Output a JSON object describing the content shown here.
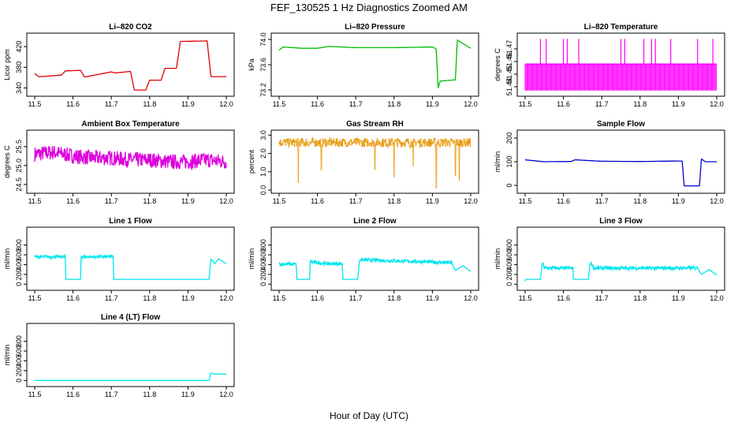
{
  "figure": {
    "title": "FEF_130525  1 Hz Diagnostics Zoomed AM",
    "xlabel": "Hour of Day (UTC)"
  },
  "chart_data": [
    {
      "type": "line",
      "title": "Li–820 CO2",
      "ylabel": "Licor ppm",
      "xlim": [
        11.5,
        12.0
      ],
      "ylim": [
        330,
        440
      ],
      "yticks": [
        "340",
        "380",
        "420"
      ],
      "xticks": [
        "11.5",
        "11.6",
        "11.7",
        "11.8",
        "11.9",
        "12.0"
      ],
      "color": "#dd0000",
      "x": [
        11.5,
        11.51,
        11.52,
        11.57,
        11.58,
        11.62,
        11.63,
        11.7,
        11.71,
        11.75,
        11.76,
        11.79,
        11.8,
        11.83,
        11.84,
        11.87,
        11.88,
        11.95,
        11.96,
        12.0
      ],
      "y": [
        368,
        362,
        362,
        365,
        373,
        374,
        361,
        371,
        369,
        372,
        336,
        336,
        355,
        355,
        378,
        378,
        430,
        431,
        362,
        362
      ]
    },
    {
      "type": "line",
      "title": "Li–820 Pressure",
      "ylabel": "kPa",
      "xlim": [
        11.5,
        12.0
      ],
      "ylim": [
        73.15,
        74.05
      ],
      "yticks": [
        "73.2",
        "73.6",
        "74.0"
      ],
      "xticks": [
        "11.5",
        "11.6",
        "11.7",
        "11.8",
        "11.9",
        "12.0"
      ],
      "color": "#00bb00",
      "x": [
        11.5,
        11.51,
        11.56,
        11.6,
        11.63,
        11.7,
        11.8,
        11.9,
        11.91,
        11.915,
        11.92,
        11.96,
        11.965,
        12.0
      ],
      "y": [
        73.83,
        73.88,
        73.86,
        73.86,
        73.89,
        73.87,
        73.87,
        73.88,
        73.85,
        73.22,
        73.34,
        73.36,
        73.99,
        73.86
      ]
    },
    {
      "type": "line",
      "title": "Li–820 Temperature",
      "ylabel": "degrees C",
      "xlim": [
        11.5,
        12.0
      ],
      "ylim": [
        51.435,
        51.48
      ],
      "yticks": [
        "51.44",
        "51.45",
        "51.46",
        "51.47"
      ],
      "xticks": [
        "11.5",
        "11.6",
        "11.7",
        "11.8",
        "11.9",
        "12.0"
      ],
      "color": "#ff00ff",
      "levels": [
        51.437,
        51.458
      ],
      "spike_value": 51.478,
      "spikes_x": [
        11.54,
        11.555,
        11.6,
        11.61,
        11.64,
        11.75,
        11.76,
        11.81,
        11.83,
        11.84,
        11.88,
        11.95,
        11.99
      ]
    },
    {
      "type": "line",
      "title": "Ambient Box Temperature",
      "ylabel": "degrees C",
      "xlim": [
        11.5,
        12.0
      ],
      "ylim": [
        24.35,
        25.85
      ],
      "yticks": [
        "24.5",
        "25.0",
        "25.5"
      ],
      "xticks": [
        "11.5",
        "11.6",
        "11.7",
        "11.8",
        "11.9",
        "12.0"
      ],
      "color": "#dd00dd",
      "x": [
        11.5,
        11.55,
        11.6,
        11.65,
        11.7,
        11.75,
        11.8,
        11.85,
        11.9,
        11.95,
        12.0
      ],
      "y": [
        25.3,
        25.35,
        25.25,
        25.2,
        25.2,
        25.15,
        25.15,
        25.1,
        25.1,
        25.15,
        25.1
      ],
      "noise": 0.4
    },
    {
      "type": "line",
      "title": "Gas Stream RH",
      "ylabel": "percent",
      "xlim": [
        11.5,
        12.0
      ],
      "ylim": [
        0,
        3.1
      ],
      "yticks": [
        "0.0",
        "1.0",
        "2.0",
        "3.0"
      ],
      "xticks": [
        "11.5",
        "11.6",
        "11.7",
        "11.8",
        "11.9",
        "12.0"
      ],
      "color": "#e69500",
      "x": [
        11.5,
        12.0
      ],
      "y": [
        2.6,
        2.6
      ],
      "noise": 0.5,
      "dips_x": [
        11.55,
        11.61,
        11.75,
        11.8,
        11.85,
        11.91,
        11.96,
        11.97
      ],
      "dips_y": [
        0.4,
        1.1,
        1.1,
        0.7,
        1.3,
        0.1,
        0.8,
        0.5
      ]
    },
    {
      "type": "line",
      "title": "Sample Flow",
      "ylabel": "ml/min",
      "xlim": [
        11.5,
        12.0
      ],
      "ylim": [
        -20,
        220
      ],
      "yticks": [
        "0",
        "100",
        "200"
      ],
      "xticks": [
        "11.5",
        "11.6",
        "11.7",
        "11.8",
        "11.9",
        "12.0"
      ],
      "color": "#0000cc",
      "x": [
        11.5,
        11.55,
        11.62,
        11.63,
        11.7,
        11.8,
        11.9,
        11.91,
        11.915,
        11.955,
        11.96,
        11.97,
        12.0
      ],
      "y": [
        108,
        100,
        101,
        108,
        102,
        101,
        103,
        103,
        -2,
        -2,
        112,
        100,
        100
      ]
    },
    {
      "type": "line",
      "title": "Line 1 Flow",
      "ylabel": "ml/min",
      "xlim": [
        11.5,
        12.0
      ],
      "ylim": [
        -60,
        1100
      ],
      "yticks": [
        "0",
        "200",
        "400",
        "600",
        "800"
      ],
      "xticks": [
        "11.5",
        "11.6",
        "11.7",
        "11.8",
        "11.9",
        "12.0"
      ],
      "color": "#00e5ee",
      "x": [
        11.5,
        11.58,
        11.581,
        11.62,
        11.621,
        11.705,
        11.706,
        11.955,
        11.96,
        11.97,
        11.98,
        12.0
      ],
      "y": [
        560,
        560,
        100,
        100,
        560,
        560,
        100,
        100,
        520,
        420,
        520,
        420
      ],
      "noise": 60,
      "noise_ranges": [
        [
          11.5,
          11.58
        ],
        [
          11.62,
          11.705
        ]
      ]
    },
    {
      "type": "line",
      "title": "Line 2 Flow",
      "ylabel": "ml/min",
      "xlim": [
        11.5,
        12.0
      ],
      "ylim": [
        -60,
        1100
      ],
      "yticks": [
        "0",
        "200",
        "400",
        "600",
        "800"
      ],
      "xticks": [
        "11.5",
        "11.6",
        "11.7",
        "11.8",
        "11.9",
        "12.0"
      ],
      "color": "#00e5ee",
      "x": [
        11.5,
        11.545,
        11.546,
        11.58,
        11.581,
        11.62,
        11.621,
        11.665,
        11.666,
        11.705,
        11.71,
        11.95,
        11.96,
        11.98,
        12.0
      ],
      "y": [
        410,
        410,
        100,
        100,
        460,
        420,
        420,
        420,
        100,
        100,
        500,
        440,
        280,
        380,
        260
      ],
      "noise": 70,
      "noise_ranges": [
        [
          11.5,
          11.545
        ],
        [
          11.58,
          11.665
        ],
        [
          11.71,
          11.95
        ]
      ]
    },
    {
      "type": "line",
      "title": "Line 3 Flow",
      "ylabel": "ml/min",
      "xlim": [
        11.5,
        12.0
      ],
      "ylim": [
        -60,
        1100
      ],
      "yticks": [
        "0",
        "200",
        "400",
        "600",
        "800"
      ],
      "xticks": [
        "11.5",
        "11.6",
        "11.7",
        "11.8",
        "11.9",
        "12.0"
      ],
      "color": "#00e5ee",
      "x": [
        11.5,
        11.5,
        11.54,
        11.545,
        11.55,
        11.625,
        11.626,
        11.665,
        11.67,
        11.68,
        11.95,
        11.96,
        11.98,
        12.0
      ],
      "y": [
        60,
        100,
        100,
        450,
        330,
        330,
        100,
        100,
        450,
        330,
        330,
        200,
        300,
        190
      ],
      "noise": 70,
      "noise_ranges": [
        [
          11.545,
          11.625
        ],
        [
          11.67,
          11.95
        ]
      ]
    },
    {
      "type": "line",
      "title": "Line 4 (LT) Flow",
      "ylabel": "ml/min",
      "xlim": [
        11.5,
        12.0
      ],
      "ylim": [
        -60,
        1100
      ],
      "yticks": [
        "0",
        "200",
        "400",
        "600",
        "800"
      ],
      "xticks": [
        "11.5",
        "11.6",
        "11.7",
        "11.8",
        "11.9",
        "12.0"
      ],
      "color": "#00e5ee",
      "x": [
        11.5,
        11.955,
        11.96,
        11.97,
        12.0
      ],
      "y": [
        0,
        0,
        150,
        130,
        130
      ]
    }
  ]
}
